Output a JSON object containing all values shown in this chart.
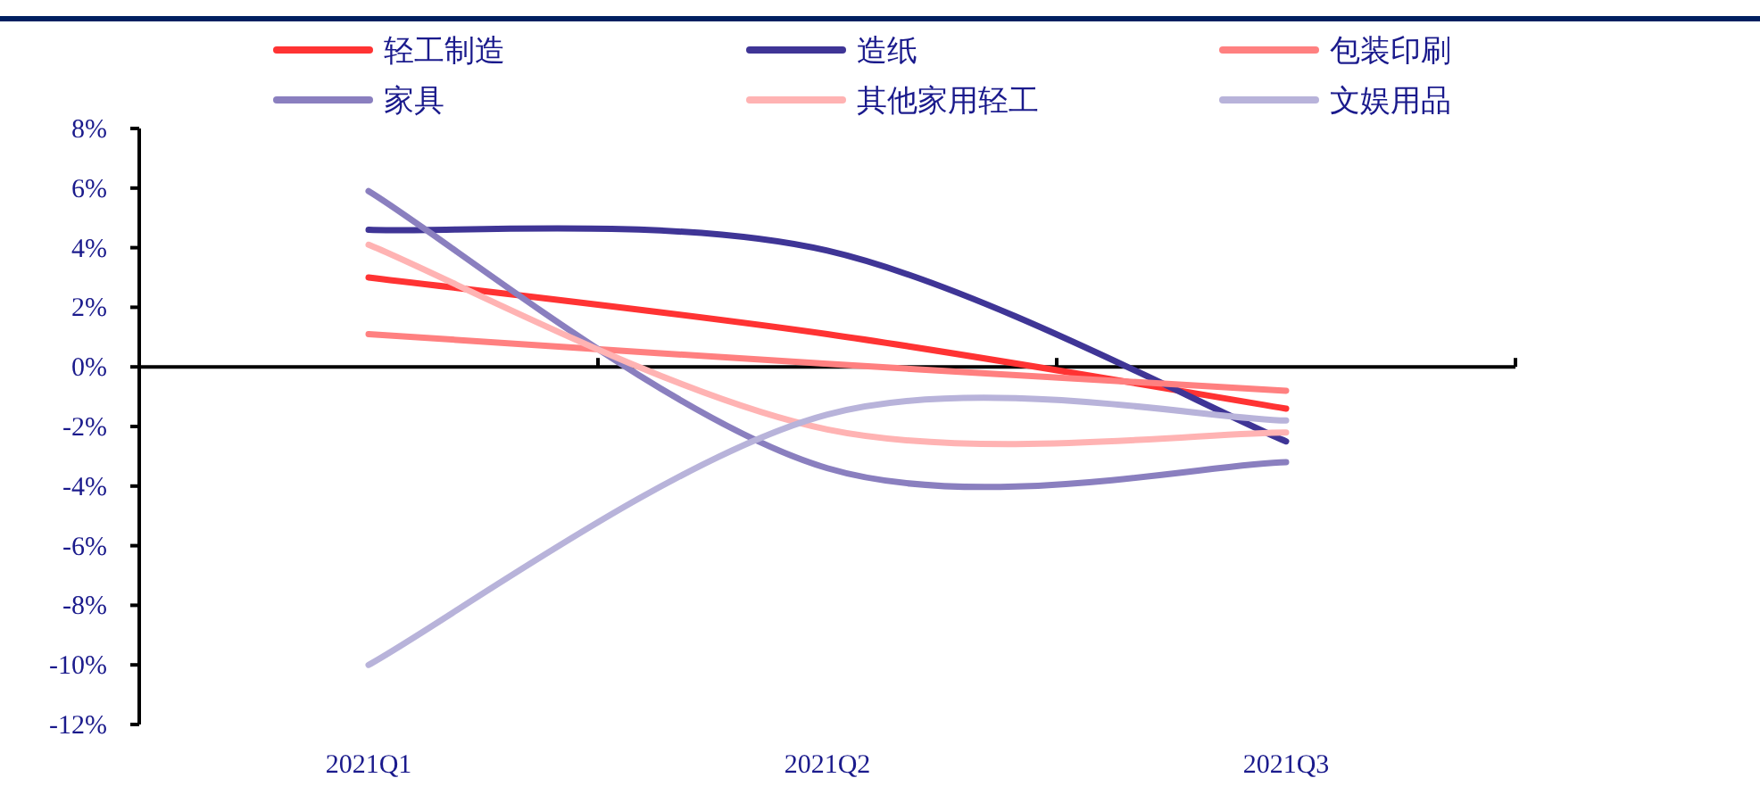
{
  "chart_data": {
    "type": "line",
    "categories": [
      "2021Q1",
      "2021Q2",
      "2021Q3"
    ],
    "series": [
      {
        "name": "轻工制造",
        "color": "#ff3333",
        "values": [
          3.0,
          1.1,
          -1.4
        ]
      },
      {
        "name": "造纸",
        "color": "#3f3596",
        "values": [
          4.6,
          3.9,
          -2.5
        ]
      },
      {
        "name": "包装印刷",
        "color": "#ff8080",
        "values": [
          1.1,
          0.1,
          -0.8
        ]
      },
      {
        "name": "家具",
        "color": "#8a7fbf",
        "values": [
          5.9,
          -3.4,
          -3.2
        ]
      },
      {
        "name": "其他家用轻工",
        "color": "#ffb3b3",
        "values": [
          4.1,
          -2.1,
          -2.2
        ]
      },
      {
        "name": "文娱用品",
        "color": "#b8b3da",
        "values": [
          -10,
          -1.6,
          -1.8
        ]
      }
    ],
    "ylim": [
      -12,
      8
    ],
    "yticks": [
      {
        "value": -12,
        "label": "-12%"
      },
      {
        "value": -10,
        "label": "-10%"
      },
      {
        "value": -8,
        "label": "-8%"
      },
      {
        "value": -6,
        "label": "-6%"
      },
      {
        "value": -4,
        "label": "-4%"
      },
      {
        "value": -2,
        "label": "-2%"
      },
      {
        "value": 0,
        "label": "0%"
      },
      {
        "value": 2,
        "label": "2%"
      },
      {
        "value": 4,
        "label": "4%"
      },
      {
        "value": 6,
        "label": "6%"
      },
      {
        "value": 8,
        "label": "8%"
      }
    ],
    "legend": "top",
    "marker": "none",
    "line_style": "solid"
  }
}
